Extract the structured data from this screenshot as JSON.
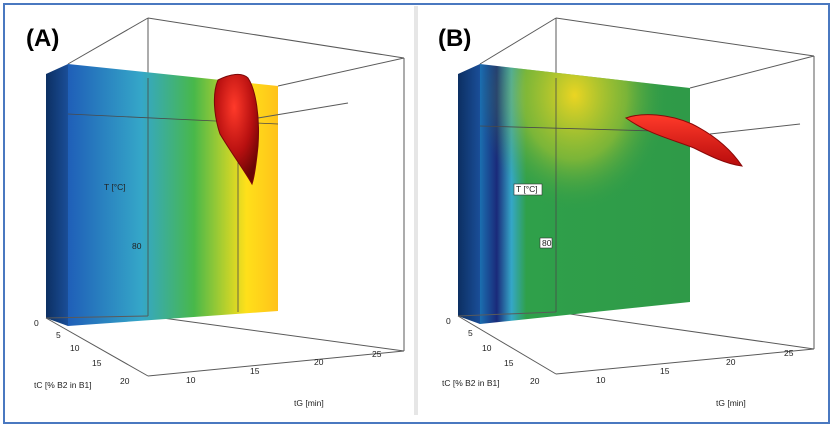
{
  "chart_data": [
    {
      "type": "surface3d",
      "panel_label": "(A)",
      "xlabel": "tG [min]",
      "ylabel": "tC [% B2 in B1]",
      "zlabel": "T [°C]",
      "x_ticks": [
        "10",
        "15",
        "20",
        "25"
      ],
      "y_ticks": [
        "0",
        "5",
        "10",
        "15",
        "20"
      ],
      "z_ticks": [
        "80"
      ],
      "colors": {
        "surface_low": "#1f5fb8",
        "surface_mid": "#3aa64a",
        "surface_high": "#ffd21a",
        "design_space": "#c81414"
      }
    },
    {
      "type": "surface3d",
      "panel_label": "(B)",
      "xlabel": "tG [min]",
      "ylabel": "tC [% B2 in B1]",
      "zlabel": "T [°C]",
      "x_ticks": [
        "10",
        "15",
        "20",
        "25"
      ],
      "y_ticks": [
        "0",
        "5",
        "10",
        "15",
        "20"
      ],
      "z_ticks": [
        "80"
      ],
      "colors": {
        "surface_low": "#1a2a7a",
        "surface_mid": "#2f9a48",
        "surface_high": "#f2d21a",
        "design_space": "#d81a1a"
      }
    }
  ]
}
